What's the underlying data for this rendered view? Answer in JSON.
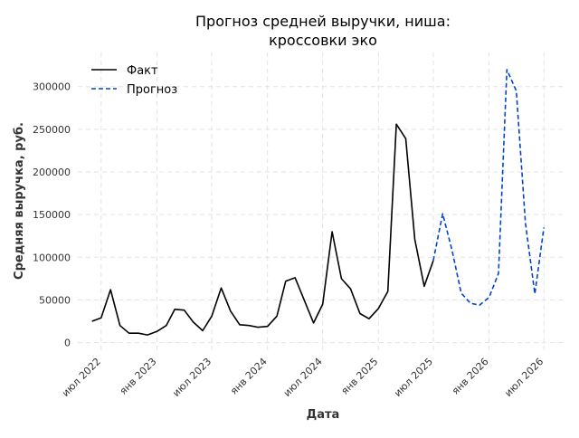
{
  "chart_data": {
    "type": "line",
    "title": [
      "Прогноз средней выручки, ниша:",
      "кроссовки эко"
    ],
    "xlabel": "Дата",
    "ylabel": "Средняя выручка, руб.",
    "ylim": [
      -10000,
      340000
    ],
    "yticks": [
      0,
      50000,
      100000,
      150000,
      200000,
      250000,
      300000
    ],
    "ytick_labels": [
      "0",
      "50000",
      "100000",
      "150000",
      "200000",
      "250000",
      "300000"
    ],
    "xlim": [
      "2022-04-15",
      "2026-09-10"
    ],
    "xticks": [
      "2022-07-01",
      "2023-01-01",
      "2023-07-01",
      "2024-01-01",
      "2024-07-01",
      "2025-01-01",
      "2025-07-01",
      "2026-01-01",
      "2026-07-01"
    ],
    "xtick_labels": [
      "июл 2022",
      "янв 2023",
      "июл 2023",
      "янв 2024",
      "июл 2024",
      "янв 2025",
      "июл 2025",
      "янв 2026",
      "июл 2026"
    ],
    "grid": true,
    "legend_position": "top-left",
    "series": [
      {
        "name": "Факт",
        "color": "#000000",
        "style": "solid",
        "x": [
          "2022-06-01",
          "2022-07-01",
          "2022-08-01",
          "2022-09-01",
          "2022-10-01",
          "2022-11-01",
          "2022-12-01",
          "2023-01-01",
          "2023-02-01",
          "2023-03-01",
          "2023-04-01",
          "2023-05-01",
          "2023-06-01",
          "2023-07-01",
          "2023-08-01",
          "2023-09-01",
          "2023-10-01",
          "2023-11-01",
          "2023-12-01",
          "2024-01-01",
          "2024-02-01",
          "2024-03-01",
          "2024-04-01",
          "2024-05-01",
          "2024-06-01",
          "2024-07-01",
          "2024-08-01",
          "2024-09-01",
          "2024-10-01",
          "2024-11-01",
          "2024-12-01",
          "2025-01-01",
          "2025-02-01",
          "2025-03-01",
          "2025-04-01",
          "2025-05-01",
          "2025-06-01",
          "2025-07-01"
        ],
        "values": [
          25000,
          29000,
          62000,
          20000,
          11000,
          11000,
          9000,
          13000,
          20000,
          39000,
          38000,
          24000,
          14000,
          31000,
          64000,
          37000,
          21000,
          20000,
          18000,
          19000,
          31000,
          72000,
          76000,
          50000,
          23000,
          45000,
          130000,
          75000,
          63000,
          34000,
          28000,
          40000,
          60000,
          256000,
          239000,
          121000,
          66000,
          96000
        ]
      },
      {
        "name": "Прогноз",
        "color": "#0044cc",
        "style": "dashed",
        "x": [
          "2025-07-01",
          "2025-08-01",
          "2025-09-01",
          "2025-10-01",
          "2025-11-01",
          "2025-12-01",
          "2026-01-01",
          "2026-02-01",
          "2026-03-01",
          "2026-04-01",
          "2026-05-01",
          "2026-06-01",
          "2026-07-01"
        ],
        "values": [
          96000,
          151000,
          108000,
          58000,
          46000,
          44000,
          53000,
          81000,
          320000,
          295000,
          140000,
          57000,
          135000
        ]
      }
    ]
  }
}
